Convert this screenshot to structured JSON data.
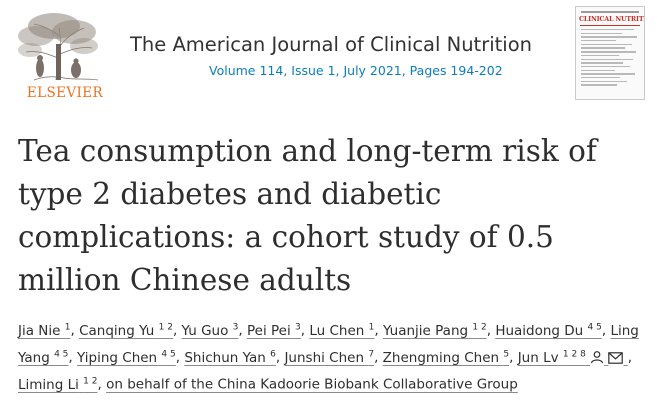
{
  "header": {
    "publisher": "ELSEVIER",
    "journal_title": "The American Journal of Clinical Nutrition",
    "journal_meta": "Volume 114, Issue 1, July 2021, Pages 194-202",
    "cover_title": "CLINICAL NUTRITION"
  },
  "article": {
    "title_lines": [
      "Tea consumption and long-term risk of",
      "type 2 diabetes and diabetic",
      "complications: a cohort study of 0.5",
      "million Chinese adults"
    ]
  },
  "authors": [
    {
      "name": "Jia Nie",
      "sup": "1"
    },
    {
      "name": "Canqing Yu",
      "sup": "1 2"
    },
    {
      "name": "Yu Guo",
      "sup": "3"
    },
    {
      "name": "Pei Pei",
      "sup": "3"
    },
    {
      "name": "Lu Chen",
      "sup": "1"
    },
    {
      "name": "Yuanjie Pang",
      "sup": "1 2"
    },
    {
      "name": "Huaidong Du",
      "sup": "4 5"
    },
    {
      "name": "Ling Yang",
      "sup": "4 5"
    },
    {
      "name": "Yiping Chen",
      "sup": "4 5"
    },
    {
      "name": "Shichun Yan",
      "sup": "6"
    },
    {
      "name": "Junshi Chen",
      "sup": "7"
    },
    {
      "name": "Zhengming Chen",
      "sup": "5"
    },
    {
      "name": "Jun Lv",
      "sup": "1 2 8"
    },
    {
      "name": "Liming Li",
      "sup": "1 2"
    },
    {
      "name": "on behalf of the China Kadoorie Biobank Collaborative Group",
      "sup": ""
    }
  ],
  "icons": {
    "person": "person-icon",
    "mail": "mail-icon"
  },
  "colors": {
    "elsevier_orange": "#e9711c",
    "link_blue": "#0c7dbb",
    "cover_red": "#c3322b"
  }
}
